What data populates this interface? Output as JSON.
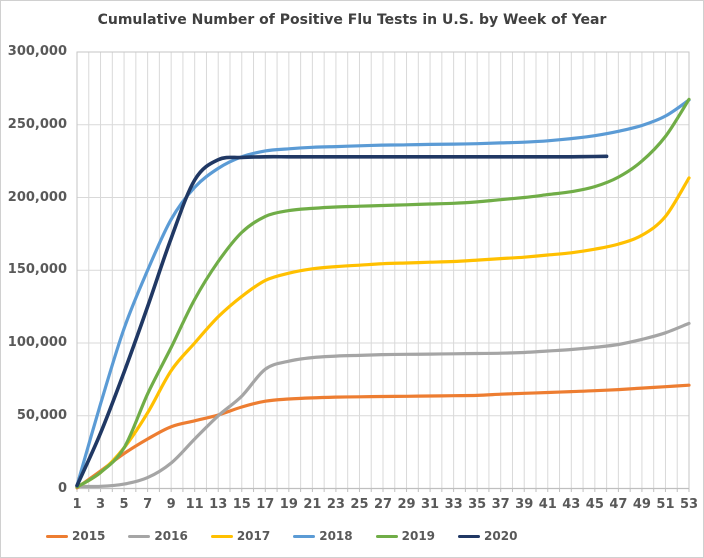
{
  "title": "Cumulative Number of Positive Flu Tests in U.S. by Week of Year",
  "chart_data": {
    "type": "line",
    "title": "Cumulative Number of Positive Flu Tests in U.S. by Week of Year",
    "xlabel": "",
    "ylabel": "",
    "x": [
      1,
      3,
      5,
      7,
      9,
      11,
      13,
      15,
      17,
      19,
      21,
      23,
      25,
      27,
      29,
      31,
      33,
      35,
      37,
      39,
      41,
      43,
      45,
      47,
      49,
      51,
      53
    ],
    "x_tick_labels": [
      "1",
      "3",
      "5",
      "7",
      "9",
      "11",
      "13",
      "15",
      "17",
      "19",
      "21",
      "23",
      "25",
      "27",
      "29",
      "31",
      "33",
      "35",
      "37",
      "39",
      "41",
      "43",
      "45",
      "47",
      "49",
      "51",
      "53"
    ],
    "xlim": [
      1,
      53
    ],
    "ylim": [
      0,
      300000
    ],
    "y_ticks": {
      "values": [
        0,
        50000,
        100000,
        150000,
        200000,
        250000,
        300000
      ],
      "labels": [
        "0",
        "50,000",
        "100,000",
        "150,000",
        "200,000",
        "250,000",
        "300,000"
      ]
    },
    "grid": "vertical gridline every week, horizontal gridline every 50,000",
    "legend_position": "bottom",
    "series": [
      {
        "name": "2015",
        "color": "#ED7D31",
        "values": [
          500,
          12000,
          24000,
          34000,
          42500,
          46500,
          50500,
          56000,
          60000,
          61500,
          62300,
          62800,
          63000,
          63200,
          63400,
          63600,
          63800,
          64000,
          64800,
          65400,
          66000,
          66600,
          67200,
          68000,
          69000,
          70000,
          71000
        ]
      },
      {
        "name": "2016",
        "color": "#A5A5A5",
        "values": [
          1500,
          1500,
          3000,
          7500,
          17500,
          34000,
          50000,
          63500,
          82000,
          87500,
          90000,
          91000,
          91500,
          92000,
          92200,
          92400,
          92600,
          92800,
          93000,
          93500,
          94500,
          95500,
          97000,
          99000,
          102500,
          107000,
          113500
        ]
      },
      {
        "name": "2017",
        "color": "#FFC000",
        "values": [
          1000,
          11000,
          28000,
          52000,
          81000,
          100000,
          118000,
          132000,
          143000,
          148000,
          151000,
          152500,
          153500,
          154500,
          155000,
          155500,
          156000,
          157000,
          158000,
          159000,
          160500,
          162000,
          164500,
          168000,
          174000,
          187000,
          213500
        ]
      },
      {
        "name": "2018",
        "color": "#5B9BD5",
        "values": [
          2000,
          58000,
          110000,
          150000,
          185000,
          207000,
          220000,
          228000,
          232000,
          233500,
          234500,
          235000,
          235500,
          236000,
          236200,
          236500,
          236700,
          237000,
          237500,
          238000,
          239000,
          240500,
          242500,
          245500,
          249500,
          256000,
          267000
        ]
      },
      {
        "name": "2019",
        "color": "#70AD47",
        "values": [
          1000,
          11000,
          28000,
          65000,
          97000,
          130000,
          156000,
          176000,
          187000,
          191000,
          192500,
          193500,
          194000,
          194500,
          195000,
          195500,
          196000,
          197000,
          198500,
          200000,
          202000,
          204000,
          207500,
          214000,
          225000,
          242000,
          267500
        ]
      },
      {
        "name": "2020",
        "color": "#203864",
        "x": [
          1,
          3,
          5,
          7,
          9,
          11,
          13,
          15,
          17,
          19,
          21,
          23,
          25,
          27,
          29,
          31,
          33,
          35,
          37,
          39,
          41,
          43,
          45,
          46
        ],
        "values": [
          2000,
          38000,
          80000,
          125000,
          172000,
          212000,
          226000,
          227500,
          228000,
          228000,
          228000,
          228000,
          228000,
          228000,
          228000,
          228000,
          228000,
          228000,
          228000,
          228000,
          228000,
          228000,
          228200,
          228300
        ]
      }
    ]
  }
}
